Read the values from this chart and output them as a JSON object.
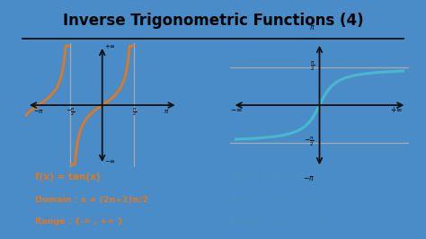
{
  "title": "Inverse Trigonometric Functions (4)",
  "bg_outer": "#4a8cc7",
  "bg_inner": "#f0f4f8",
  "tan_color": "#e07820",
  "atan_color": "#4ab8cc",
  "text_color_orange": "#e07820",
  "text_color_blue": "#4a90c0",
  "axis_color": "#111111",
  "gray_line_color": "#aaaaaa",
  "left_text_line1": "f(x) = tan(x)",
  "left_text_line2": "Domain : x ≠ (2n+1)π/2",
  "left_text_line3": "Range : {-∞ , +∞ }",
  "right_text_line1": "f(x) = tan⁻¹(x)",
  "right_text_line2": "Domain : {-∞ , +∞ }",
  "right_text_line3": "Range : {-π/2 , +π/2 }"
}
